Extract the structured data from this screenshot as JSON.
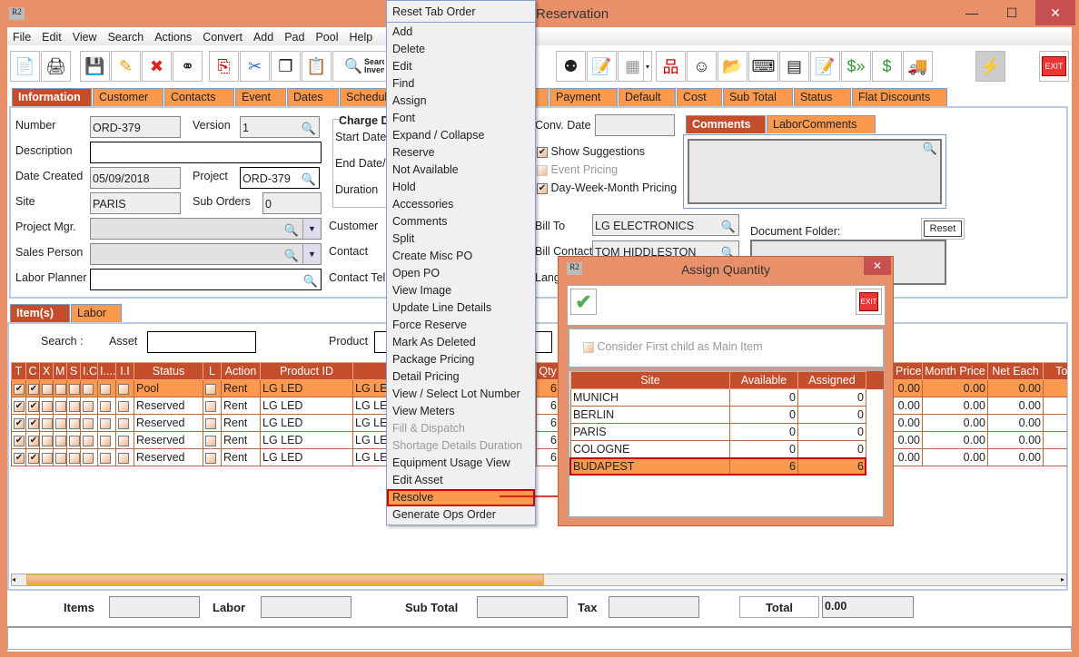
{
  "window": {
    "title": "Reservation",
    "minimize": "—",
    "maximize": "☐",
    "close": "✕",
    "app_icon": "R2"
  },
  "menubar": [
    "File",
    "Edit",
    "View",
    "Search",
    "Actions",
    "Convert",
    "Add",
    "Pad",
    "Pool",
    "Help"
  ],
  "toolbar": {
    "search_inventory_label": "Search Inventory",
    "exit_label": "EXIT"
  },
  "main_tabs": [
    "Information",
    "Customer",
    "Contacts",
    "Event",
    "Dates",
    "Schedule",
    "Payment",
    "Default",
    "Cost",
    "Sub Total",
    "Status",
    "Flat Discounts"
  ],
  "info": {
    "number_label": "Number",
    "number": "ORD-379",
    "version_label": "Version",
    "version": "1",
    "description_label": "Description",
    "description": "",
    "date_created_label": "Date Created",
    "date_created": "05/09/2018",
    "project_label": "Project",
    "project": "ORD-379",
    "site_label": "Site",
    "site": "PARIS",
    "sub_orders_label": "Sub Orders",
    "sub_orders": "0",
    "project_mgr_label": "Project Mgr.",
    "sales_person_label": "Sales Person",
    "labor_planner_label": "Labor Planner",
    "charge_group": "Charge D",
    "start_date_label": "Start Date/",
    "end_date_label": "End Date/",
    "duration_label": "Duration",
    "customer_label": "Customer",
    "contact_label": "Contact",
    "contact_tel_label": "Contact Tel",
    "conv_date_label": "Conv. Date",
    "show_suggestions": "Show Suggestions",
    "event_pricing": "Event Pricing",
    "dwm_pricing": "Day-Week-Month Pricing",
    "bill_to_label": "Bill To",
    "bill_to": "LG ELECTRONICS",
    "bill_contact_label": "Bill Contact",
    "bill_contact": "TOM HIDDLESTON",
    "lang_label": "Lang",
    "comment_tabs": [
      "Comments",
      "LaborComments"
    ],
    "document_folder_label": "Document Folder:",
    "reset_label": "Reset"
  },
  "item_tabs": [
    "Item(s)",
    "Labor"
  ],
  "search": {
    "label": "Search :",
    "asset_label": "Asset",
    "product_label": "Product"
  },
  "items_table": {
    "columns": [
      "T",
      "C",
      "X",
      "M",
      "S",
      "I.C",
      "I....",
      "I.I",
      "Status",
      "L",
      "Action",
      "Product ID",
      "",
      "Qty",
      "",
      "Price",
      "Month Price",
      "Net Each",
      "Tot"
    ],
    "rows": [
      {
        "status": "Pool",
        "action": "Rent",
        "product_id": "LG LED",
        "desc": "LG LE",
        "qty": "6",
        "price": "0.00",
        "month": "0.00",
        "net": "0.00",
        "selected": true
      },
      {
        "status": "Reserved",
        "action": "Rent",
        "product_id": "LG LED",
        "desc": "LG LE",
        "qty": "6",
        "price": "0.00",
        "month": "0.00",
        "net": "0.00"
      },
      {
        "status": "Reserved",
        "action": "Rent",
        "product_id": "LG LED",
        "desc": "LG LE",
        "qty": "6",
        "price": "0.00",
        "month": "0.00",
        "net": "0.00"
      },
      {
        "status": "Reserved",
        "action": "Rent",
        "product_id": "LG LED",
        "desc": "LG LE",
        "qty": "6",
        "price": "0.00",
        "month": "0.00",
        "net": "0.00"
      },
      {
        "status": "Reserved",
        "action": "Rent",
        "product_id": "LG LED",
        "desc": "LG LE",
        "qty": "6",
        "price": "0.00",
        "month": "0.00",
        "net": "0.00"
      }
    ]
  },
  "totals": {
    "items_label": "Items",
    "labor_label": "Labor",
    "sub_total_label": "Sub Total",
    "tax_label": "Tax",
    "total_label": "Total",
    "total": "0.00"
  },
  "context_menu": {
    "items": [
      {
        "label": "Reset Tab Order"
      },
      {
        "label": "Add"
      },
      {
        "label": "Delete"
      },
      {
        "label": "Edit"
      },
      {
        "label": "Find"
      },
      {
        "label": "Assign"
      },
      {
        "label": "Font"
      },
      {
        "label": "Expand / Collapse"
      },
      {
        "label": "Reserve"
      },
      {
        "label": "Not Available"
      },
      {
        "label": "Hold"
      },
      {
        "label": "Accessories"
      },
      {
        "label": "Comments"
      },
      {
        "label": "Split"
      },
      {
        "label": "Create Misc PO"
      },
      {
        "label": "Open PO"
      },
      {
        "label": "View Image"
      },
      {
        "label": "Update Line Details"
      },
      {
        "label": "Force Reserve"
      },
      {
        "label": "Mark As Deleted"
      },
      {
        "label": "Package Pricing"
      },
      {
        "label": "Detail Pricing"
      },
      {
        "label": "View / Select Lot Number"
      },
      {
        "label": "View Meters"
      },
      {
        "label": "Fill & Dispatch",
        "disabled": true
      },
      {
        "label": "Shortage Details Duration",
        "disabled": true
      },
      {
        "label": "Equipment Usage View"
      },
      {
        "label": "Edit Asset"
      },
      {
        "label": "Resolve",
        "highlighted": true
      },
      {
        "label": "Generate Ops Order"
      }
    ]
  },
  "dialog": {
    "title": "Assign Quantity",
    "close": "✕",
    "exit_label": "EXIT",
    "first_child_label": "Consider First child as Main Item",
    "columns": [
      "Site",
      "Available",
      "Assigned"
    ],
    "rows": [
      {
        "site": "MUNICH",
        "available": "0",
        "assigned": "0"
      },
      {
        "site": "BERLIN",
        "available": "0",
        "assigned": "0"
      },
      {
        "site": "PARIS",
        "available": "0",
        "assigned": "0"
      },
      {
        "site": "COLOGNE",
        "available": "0",
        "assigned": "0"
      },
      {
        "site": "BUDAPEST",
        "available": "6",
        "assigned": "6",
        "selected": true
      }
    ]
  },
  "colors": {
    "accent": "#C44E2C",
    "tab": "#FB9A4E",
    "frame": "#E8906A",
    "highlight": "#CC0000"
  }
}
